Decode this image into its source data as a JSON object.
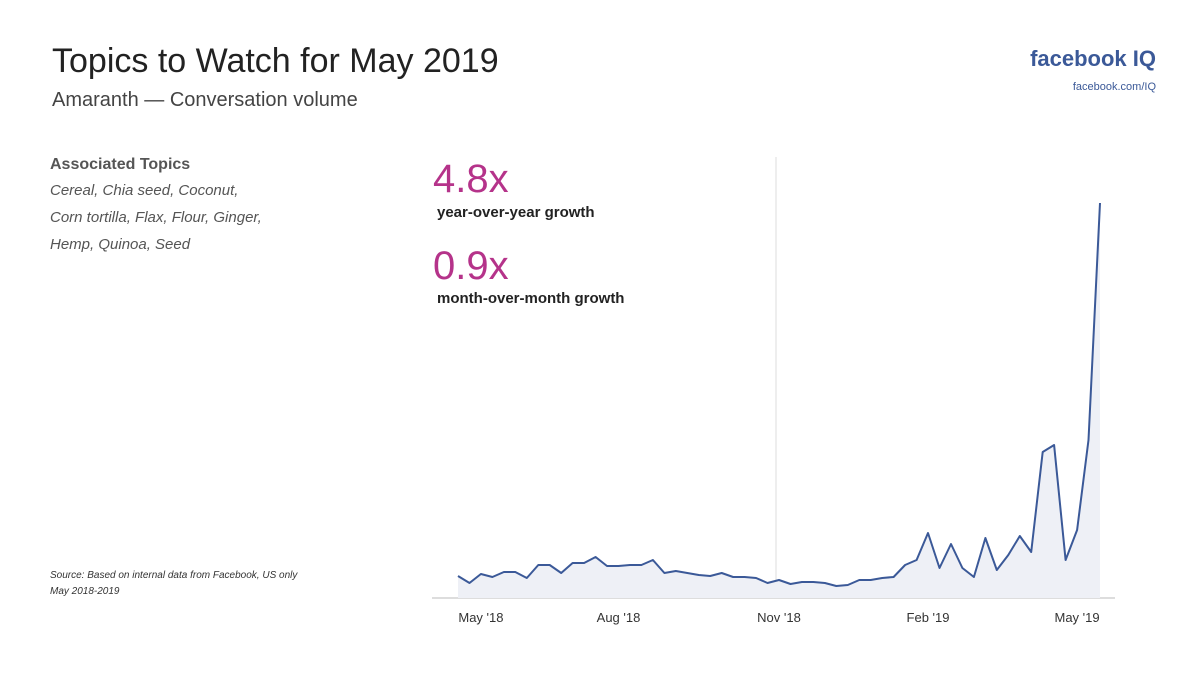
{
  "chart_data": {
    "type": "line",
    "title": "Topics to Watch for May 2019",
    "subtitle": "Amaranth — Conversation volume",
    "categories": [
      null,
      null,
      "May '18",
      null,
      null,
      null,
      null,
      null,
      null,
      null,
      null,
      null,
      null,
      null,
      "Aug '18",
      null,
      null,
      null,
      null,
      null,
      null,
      null,
      null,
      null,
      null,
      null,
      null,
      null,
      "Nov '18",
      null,
      null,
      null,
      null,
      null,
      null,
      null,
      null,
      null,
      null,
      null,
      null,
      "Feb '19",
      null,
      null,
      null,
      null,
      null,
      null,
      null,
      null,
      null,
      null,
      null,
      null,
      "May '19",
      null,
      null
    ],
    "values": [
      22,
      15,
      24,
      21,
      26,
      26,
      20,
      33,
      33,
      25,
      35,
      35,
      41,
      32,
      32,
      33,
      33,
      38,
      25,
      27,
      25,
      23,
      22,
      25,
      21,
      21,
      20,
      15,
      18,
      14,
      16,
      16,
      15,
      12,
      13,
      18,
      18,
      20,
      21,
      33,
      38,
      65,
      30,
      54,
      30,
      21,
      60,
      28,
      43,
      62,
      46,
      146,
      153,
      38,
      68,
      158,
      395
    ],
    "color": "#3b5998"
  },
  "logo": {
    "name": "facebook IQ",
    "url": "facebook.com/IQ"
  },
  "associated_topics": {
    "heading": "Associated Topics",
    "lines": [
      "Cereal, Chia seed, Coconut,",
      "Corn tortilla, Flax, Flour, Ginger,",
      "Hemp, Quinoa, Seed"
    ]
  },
  "metrics": [
    {
      "value": "4.8x",
      "label": "year-over-year growth"
    },
    {
      "value": "0.9x",
      "label": "month-over-month growth"
    }
  ],
  "source": [
    "Source: Based on internal data from Facebook, US only",
    "May 2018-2019"
  ]
}
